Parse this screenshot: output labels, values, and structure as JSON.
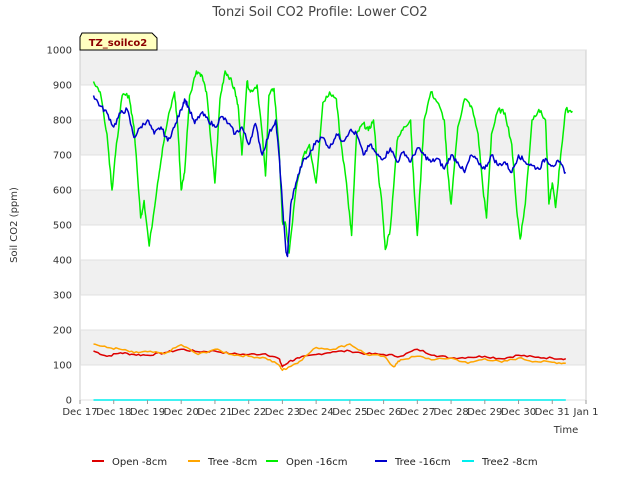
{
  "chart_data": {
    "type": "line",
    "title": "Tonzi Soil CO2 Profile: Lower CO2",
    "xlabel": "Time",
    "ylabel": "Soil CO2 (ppm)",
    "ylim": [
      0,
      1000
    ],
    "yticks": [
      0,
      100,
      200,
      300,
      400,
      500,
      600,
      700,
      800,
      900,
      1000
    ],
    "xlim": [
      0,
      15
    ],
    "xticks": [
      {
        "v": 0,
        "label": "Dec 17"
      },
      {
        "v": 1,
        "label": "Dec 18"
      },
      {
        "v": 2,
        "label": "Dec 19"
      },
      {
        "v": 3,
        "label": "Dec 20"
      },
      {
        "v": 4,
        "label": "Dec 21"
      },
      {
        "v": 5,
        "label": "Dec 22"
      },
      {
        "v": 6,
        "label": "Dec 23"
      },
      {
        "v": 7,
        "label": "Dec 24"
      },
      {
        "v": 8,
        "label": "Dec 25"
      },
      {
        "v": 9,
        "label": "Dec 26"
      },
      {
        "v": 10,
        "label": "Dec 27"
      },
      {
        "v": 11,
        "label": "Dec 28"
      },
      {
        "v": 12,
        "label": "Dec 29"
      },
      {
        "v": 13,
        "label": "Dec 30"
      },
      {
        "v": 14,
        "label": "Dec 31"
      },
      {
        "v": 15,
        "label": "Jan 1"
      }
    ],
    "badge": "TZ_soilco2",
    "x_unit": "days since Dec 17",
    "series": [
      {
        "name": "Open -8cm",
        "color": "#dd0000",
        "points": [
          [
            0.4,
            140
          ],
          [
            0.8,
            125
          ],
          [
            1.2,
            135
          ],
          [
            1.6,
            130
          ],
          [
            2.0,
            128
          ],
          [
            2.5,
            135
          ],
          [
            3.0,
            145
          ],
          [
            3.5,
            138
          ],
          [
            4.0,
            140
          ],
          [
            4.5,
            132
          ],
          [
            5.0,
            130
          ],
          [
            5.5,
            132
          ],
          [
            5.9,
            118
          ],
          [
            6.0,
            95
          ],
          [
            6.2,
            110
          ],
          [
            6.5,
            120
          ],
          [
            7.0,
            130
          ],
          [
            7.5,
            138
          ],
          [
            8.0,
            140
          ],
          [
            8.5,
            132
          ],
          [
            9.0,
            130
          ],
          [
            9.5,
            125
          ],
          [
            10.0,
            145
          ],
          [
            10.5,
            128
          ],
          [
            11.0,
            120
          ],
          [
            11.5,
            122
          ],
          [
            12.0,
            125
          ],
          [
            12.5,
            118
          ],
          [
            13.0,
            128
          ],
          [
            13.5,
            122
          ],
          [
            14.0,
            120
          ],
          [
            14.4,
            118
          ]
        ]
      },
      {
        "name": "Tree -8cm",
        "color": "#ffa500",
        "points": [
          [
            0.4,
            160
          ],
          [
            0.8,
            150
          ],
          [
            1.2,
            145
          ],
          [
            1.6,
            135
          ],
          [
            2.0,
            138
          ],
          [
            2.5,
            132
          ],
          [
            3.0,
            158
          ],
          [
            3.5,
            130
          ],
          [
            4.0,
            145
          ],
          [
            4.5,
            130
          ],
          [
            5.0,
            125
          ],
          [
            5.5,
            120
          ],
          [
            5.9,
            100
          ],
          [
            6.0,
            85
          ],
          [
            6.2,
            95
          ],
          [
            6.5,
            110
          ],
          [
            7.0,
            150
          ],
          [
            7.5,
            145
          ],
          [
            8.0,
            160
          ],
          [
            8.5,
            130
          ],
          [
            9.0,
            125
          ],
          [
            9.3,
            95
          ],
          [
            9.5,
            115
          ],
          [
            10.0,
            125
          ],
          [
            10.5,
            115
          ],
          [
            11.0,
            120
          ],
          [
            11.5,
            105
          ],
          [
            12.0,
            118
          ],
          [
            12.5,
            108
          ],
          [
            13.0,
            120
          ],
          [
            13.5,
            110
          ],
          [
            14.0,
            108
          ],
          [
            14.4,
            105
          ]
        ]
      },
      {
        "name": "Open -16cm",
        "color": "#00ee00",
        "points": [
          [
            0.4,
            910
          ],
          [
            0.6,
            880
          ],
          [
            0.8,
            760
          ],
          [
            0.95,
            600
          ],
          [
            1.05,
            700
          ],
          [
            1.25,
            870
          ],
          [
            1.45,
            870
          ],
          [
            1.6,
            780
          ],
          [
            1.8,
            520
          ],
          [
            1.9,
            570
          ],
          [
            2.05,
            440
          ],
          [
            2.3,
            620
          ],
          [
            2.45,
            720
          ],
          [
            2.6,
            800
          ],
          [
            2.8,
            880
          ],
          [
            2.9,
            780
          ],
          [
            3.0,
            600
          ],
          [
            3.1,
            650
          ],
          [
            3.25,
            870
          ],
          [
            3.45,
            940
          ],
          [
            3.6,
            930
          ],
          [
            3.75,
            880
          ],
          [
            3.9,
            720
          ],
          [
            4.0,
            620
          ],
          [
            4.15,
            860
          ],
          [
            4.3,
            940
          ],
          [
            4.45,
            920
          ],
          [
            4.6,
            880
          ],
          [
            4.7,
            830
          ],
          [
            4.8,
            700
          ],
          [
            4.95,
            910
          ],
          [
            5.05,
            880
          ],
          [
            5.25,
            900
          ],
          [
            5.4,
            760
          ],
          [
            5.5,
            640
          ],
          [
            5.6,
            870
          ],
          [
            5.75,
            890
          ],
          [
            5.9,
            720
          ],
          [
            6.0,
            510
          ],
          [
            6.1,
            500
          ],
          [
            6.2,
            420
          ],
          [
            6.4,
            600
          ],
          [
            6.6,
            690
          ],
          [
            6.8,
            730
          ],
          [
            7.0,
            620
          ],
          [
            7.2,
            850
          ],
          [
            7.4,
            880
          ],
          [
            7.6,
            860
          ],
          [
            7.7,
            760
          ],
          [
            7.9,
            620
          ],
          [
            8.0,
            520
          ],
          [
            8.05,
            470
          ],
          [
            8.2,
            760
          ],
          [
            8.4,
            790
          ],
          [
            8.55,
            770
          ],
          [
            8.7,
            800
          ],
          [
            8.85,
            640
          ],
          [
            8.95,
            560
          ],
          [
            9.05,
            430
          ],
          [
            9.2,
            490
          ],
          [
            9.4,
            740
          ],
          [
            9.6,
            780
          ],
          [
            9.8,
            800
          ],
          [
            9.9,
            610
          ],
          [
            10.0,
            470
          ],
          [
            10.2,
            800
          ],
          [
            10.4,
            880
          ],
          [
            10.6,
            850
          ],
          [
            10.8,
            800
          ],
          [
            10.9,
            650
          ],
          [
            11.0,
            560
          ],
          [
            11.2,
            780
          ],
          [
            11.4,
            860
          ],
          [
            11.6,
            840
          ],
          [
            11.8,
            760
          ],
          [
            11.95,
            600
          ],
          [
            12.05,
            520
          ],
          [
            12.2,
            760
          ],
          [
            12.4,
            830
          ],
          [
            12.6,
            820
          ],
          [
            12.8,
            730
          ],
          [
            12.95,
            540
          ],
          [
            13.05,
            460
          ],
          [
            13.2,
            560
          ],
          [
            13.4,
            800
          ],
          [
            13.6,
            830
          ],
          [
            13.8,
            800
          ],
          [
            13.9,
            560
          ],
          [
            14.0,
            620
          ],
          [
            14.1,
            550
          ],
          [
            14.25,
            700
          ],
          [
            14.4,
            830
          ],
          [
            14.6,
            825
          ]
        ]
      },
      {
        "name": "Tree -16cm",
        "color": "#0000cc",
        "points": [
          [
            0.4,
            870
          ],
          [
            0.6,
            840
          ],
          [
            0.8,
            820
          ],
          [
            1.0,
            780
          ],
          [
            1.2,
            820
          ],
          [
            1.4,
            830
          ],
          [
            1.6,
            750
          ],
          [
            1.8,
            780
          ],
          [
            2.0,
            800
          ],
          [
            2.2,
            760
          ],
          [
            2.4,
            780
          ],
          [
            2.6,
            740
          ],
          [
            2.8,
            780
          ],
          [
            3.0,
            830
          ],
          [
            3.1,
            860
          ],
          [
            3.2,
            840
          ],
          [
            3.4,
            790
          ],
          [
            3.6,
            820
          ],
          [
            3.8,
            800
          ],
          [
            4.0,
            780
          ],
          [
            4.2,
            810
          ],
          [
            4.4,
            790
          ],
          [
            4.6,
            760
          ],
          [
            4.8,
            780
          ],
          [
            5.0,
            730
          ],
          [
            5.2,
            790
          ],
          [
            5.4,
            700
          ],
          [
            5.6,
            760
          ],
          [
            5.8,
            800
          ],
          [
            5.9,
            700
          ],
          [
            6.0,
            560
          ],
          [
            6.1,
            430
          ],
          [
            6.15,
            410
          ],
          [
            6.25,
            560
          ],
          [
            6.4,
            620
          ],
          [
            6.6,
            680
          ],
          [
            6.8,
            700
          ],
          [
            7.0,
            740
          ],
          [
            7.2,
            750
          ],
          [
            7.4,
            720
          ],
          [
            7.6,
            760
          ],
          [
            7.8,
            740
          ],
          [
            8.0,
            770
          ],
          [
            8.2,
            760
          ],
          [
            8.4,
            700
          ],
          [
            8.6,
            730
          ],
          [
            8.8,
            700
          ],
          [
            9.0,
            690
          ],
          [
            9.2,
            720
          ],
          [
            9.4,
            680
          ],
          [
            9.6,
            710
          ],
          [
            9.8,
            680
          ],
          [
            10.0,
            720
          ],
          [
            10.2,
            700
          ],
          [
            10.4,
            680
          ],
          [
            10.6,
            690
          ],
          [
            10.8,
            660
          ],
          [
            11.0,
            700
          ],
          [
            11.2,
            680
          ],
          [
            11.4,
            650
          ],
          [
            11.6,
            700
          ],
          [
            11.8,
            680
          ],
          [
            12.0,
            660
          ],
          [
            12.2,
            700
          ],
          [
            12.4,
            670
          ],
          [
            12.6,
            680
          ],
          [
            12.8,
            650
          ],
          [
            13.0,
            700
          ],
          [
            13.2,
            680
          ],
          [
            13.4,
            670
          ],
          [
            13.6,
            660
          ],
          [
            13.8,
            690
          ],
          [
            14.0,
            670
          ],
          [
            14.2,
            680
          ],
          [
            14.4,
            650
          ]
        ]
      },
      {
        "name": "Tree2 -8cm",
        "color": "#00eeee",
        "points": [
          [
            0.4,
            0
          ],
          [
            14.4,
            0
          ]
        ]
      }
    ]
  }
}
